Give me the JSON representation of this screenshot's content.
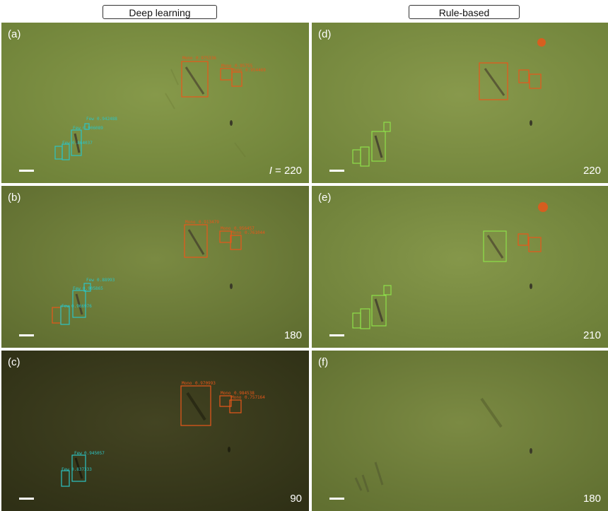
{
  "headers": {
    "left": "Deep learning",
    "right": "Rule-based"
  },
  "colors": {
    "mono": "#e8571a",
    "few_deep": "#2cc4c4",
    "few_rule": "#8ee04a",
    "substrate": "#7f9443",
    "substrate_dark": "#3c3c1e"
  },
  "panels": [
    {
      "id": "a",
      "label": "(a)",
      "intensity_prefix": "I",
      "intensity_sep": " = ",
      "intensity": "220",
      "detections": [
        {
          "cls": "Mono",
          "score": "0.975336"
        },
        {
          "cls": "Mono",
          "score": "0.95755"
        },
        {
          "cls": "Mono",
          "score": "0.954469"
        },
        {
          "cls": "Few",
          "score": "0.942488"
        },
        {
          "cls": "Few",
          "score": "0.906089"
        },
        {
          "cls": "Few",
          "score": "0.864037"
        }
      ]
    },
    {
      "id": "b",
      "label": "(b)",
      "intensity_prefix": "",
      "intensity_sep": "",
      "intensity": "180",
      "detections": [
        {
          "cls": "Mono",
          "score": "0.913479"
        },
        {
          "cls": "Mono",
          "score": "0.956457"
        },
        {
          "cls": "Mono",
          "score": "0.761044"
        },
        {
          "cls": "Few",
          "score": "0.88993"
        },
        {
          "cls": "Few",
          "score": "0.905865"
        },
        {
          "cls": "Few",
          "score": "0.966976"
        }
      ]
    },
    {
      "id": "c",
      "label": "(c)",
      "intensity_prefix": "",
      "intensity_sep": "",
      "intensity": "90",
      "detections": [
        {
          "cls": "Mono",
          "score": "0.970993"
        },
        {
          "cls": "Mono",
          "score": "0.984538"
        },
        {
          "cls": "Mono",
          "score": "0.757164"
        },
        {
          "cls": "Few",
          "score": "0.945057"
        },
        {
          "cls": "Few",
          "score": "0.837333"
        }
      ]
    },
    {
      "id": "d",
      "label": "(d)",
      "intensity_prefix": "",
      "intensity_sep": "",
      "intensity": "220"
    },
    {
      "id": "e",
      "label": "(e)",
      "intensity_prefix": "",
      "intensity_sep": "",
      "intensity": "210"
    },
    {
      "id": "f",
      "label": "(f)",
      "intensity_prefix": "",
      "intensity_sep": "",
      "intensity": "180"
    }
  ]
}
